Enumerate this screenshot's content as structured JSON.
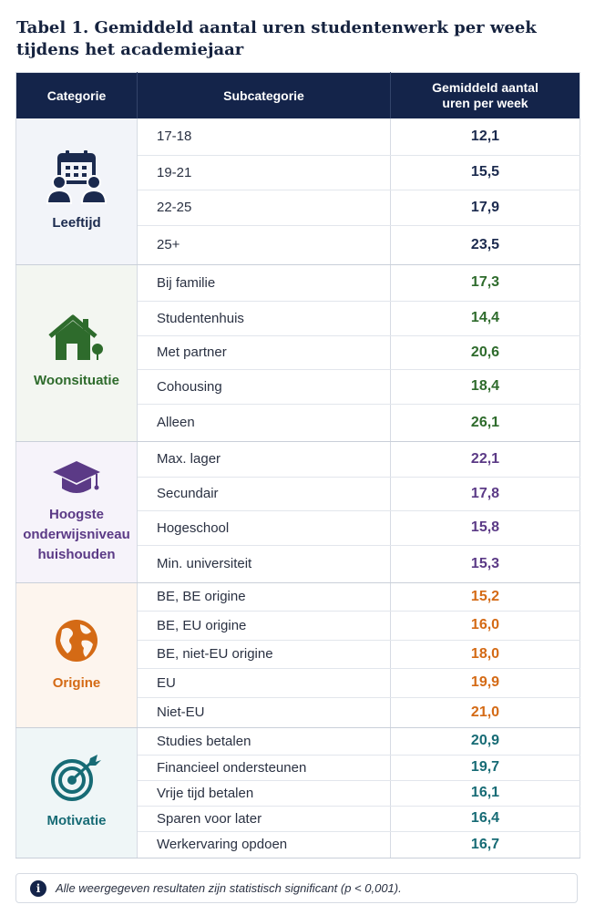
{
  "title": "Tabel 1. Gemiddeld aantal uren studentenwerk per week tijdens het academiejaar",
  "headers": {
    "category": "Categorie",
    "subcategory": "Subcategorie",
    "value": "Gemiddeld aantal uren per week"
  },
  "groups": [
    {
      "label": "Leeftijd",
      "icon": "people-calendar-icon",
      "color": "#1b2a4e",
      "bg": "#f2f4f9",
      "rows": [
        {
          "sub": "17-18",
          "value": "12,1"
        },
        {
          "sub": "19-21",
          "value": "15,5"
        },
        {
          "sub": "22-25",
          "value": "17,9"
        },
        {
          "sub": "25+",
          "value": "23,5"
        }
      ]
    },
    {
      "label": "Woonsituatie",
      "icon": "house-icon",
      "color": "#2e6b2c",
      "bg": "#f3f6f1",
      "rows": [
        {
          "sub": "Bij familie",
          "value": "17,3"
        },
        {
          "sub": "Studentenhuis",
          "value": "14,4"
        },
        {
          "sub": "Met partner",
          "value": "20,6"
        },
        {
          "sub": "Cohousing",
          "value": "18,4"
        },
        {
          "sub": "Alleen",
          "value": "26,1"
        }
      ]
    },
    {
      "label": "Hoogste onderwijsniveau huishouden",
      "icon": "graduation-cap-icon",
      "color": "#5b3a86",
      "bg": "#f6f3fa",
      "rows": [
        {
          "sub": "Max. lager",
          "value": "22,1"
        },
        {
          "sub": "Secundair",
          "value": "17,8"
        },
        {
          "sub": "Hogeschool",
          "value": "15,8"
        },
        {
          "sub": "Min. universiteit",
          "value": "15,3"
        }
      ]
    },
    {
      "label": "Origine",
      "icon": "globe-icon",
      "color": "#d46a15",
      "bg": "#fdf5ee",
      "rows": [
        {
          "sub": "BE, BE origine",
          "value": "15,2"
        },
        {
          "sub": "BE, EU origine",
          "value": "16,0"
        },
        {
          "sub": "BE, niet-EU origine",
          "value": "18,0"
        },
        {
          "sub": "EU",
          "value": "19,9"
        },
        {
          "sub": "Niet-EU",
          "value": "21,0"
        }
      ]
    },
    {
      "label": "Motivatie",
      "icon": "target-icon",
      "color": "#176b75",
      "bg": "#eff6f7",
      "rows": [
        {
          "sub": "Studies betalen",
          "value": "20,9"
        },
        {
          "sub": "Financieel ondersteunen",
          "value": "19,7"
        },
        {
          "sub": "Vrije tijd betalen",
          "value": "16,1"
        },
        {
          "sub": "Sparen voor later",
          "value": "16,4"
        },
        {
          "sub": "Werkervaring opdoen",
          "value": "16,7"
        }
      ]
    }
  ],
  "footnote": "Alle weergegeven resultaten zijn statistisch significant (p < 0,001)."
}
